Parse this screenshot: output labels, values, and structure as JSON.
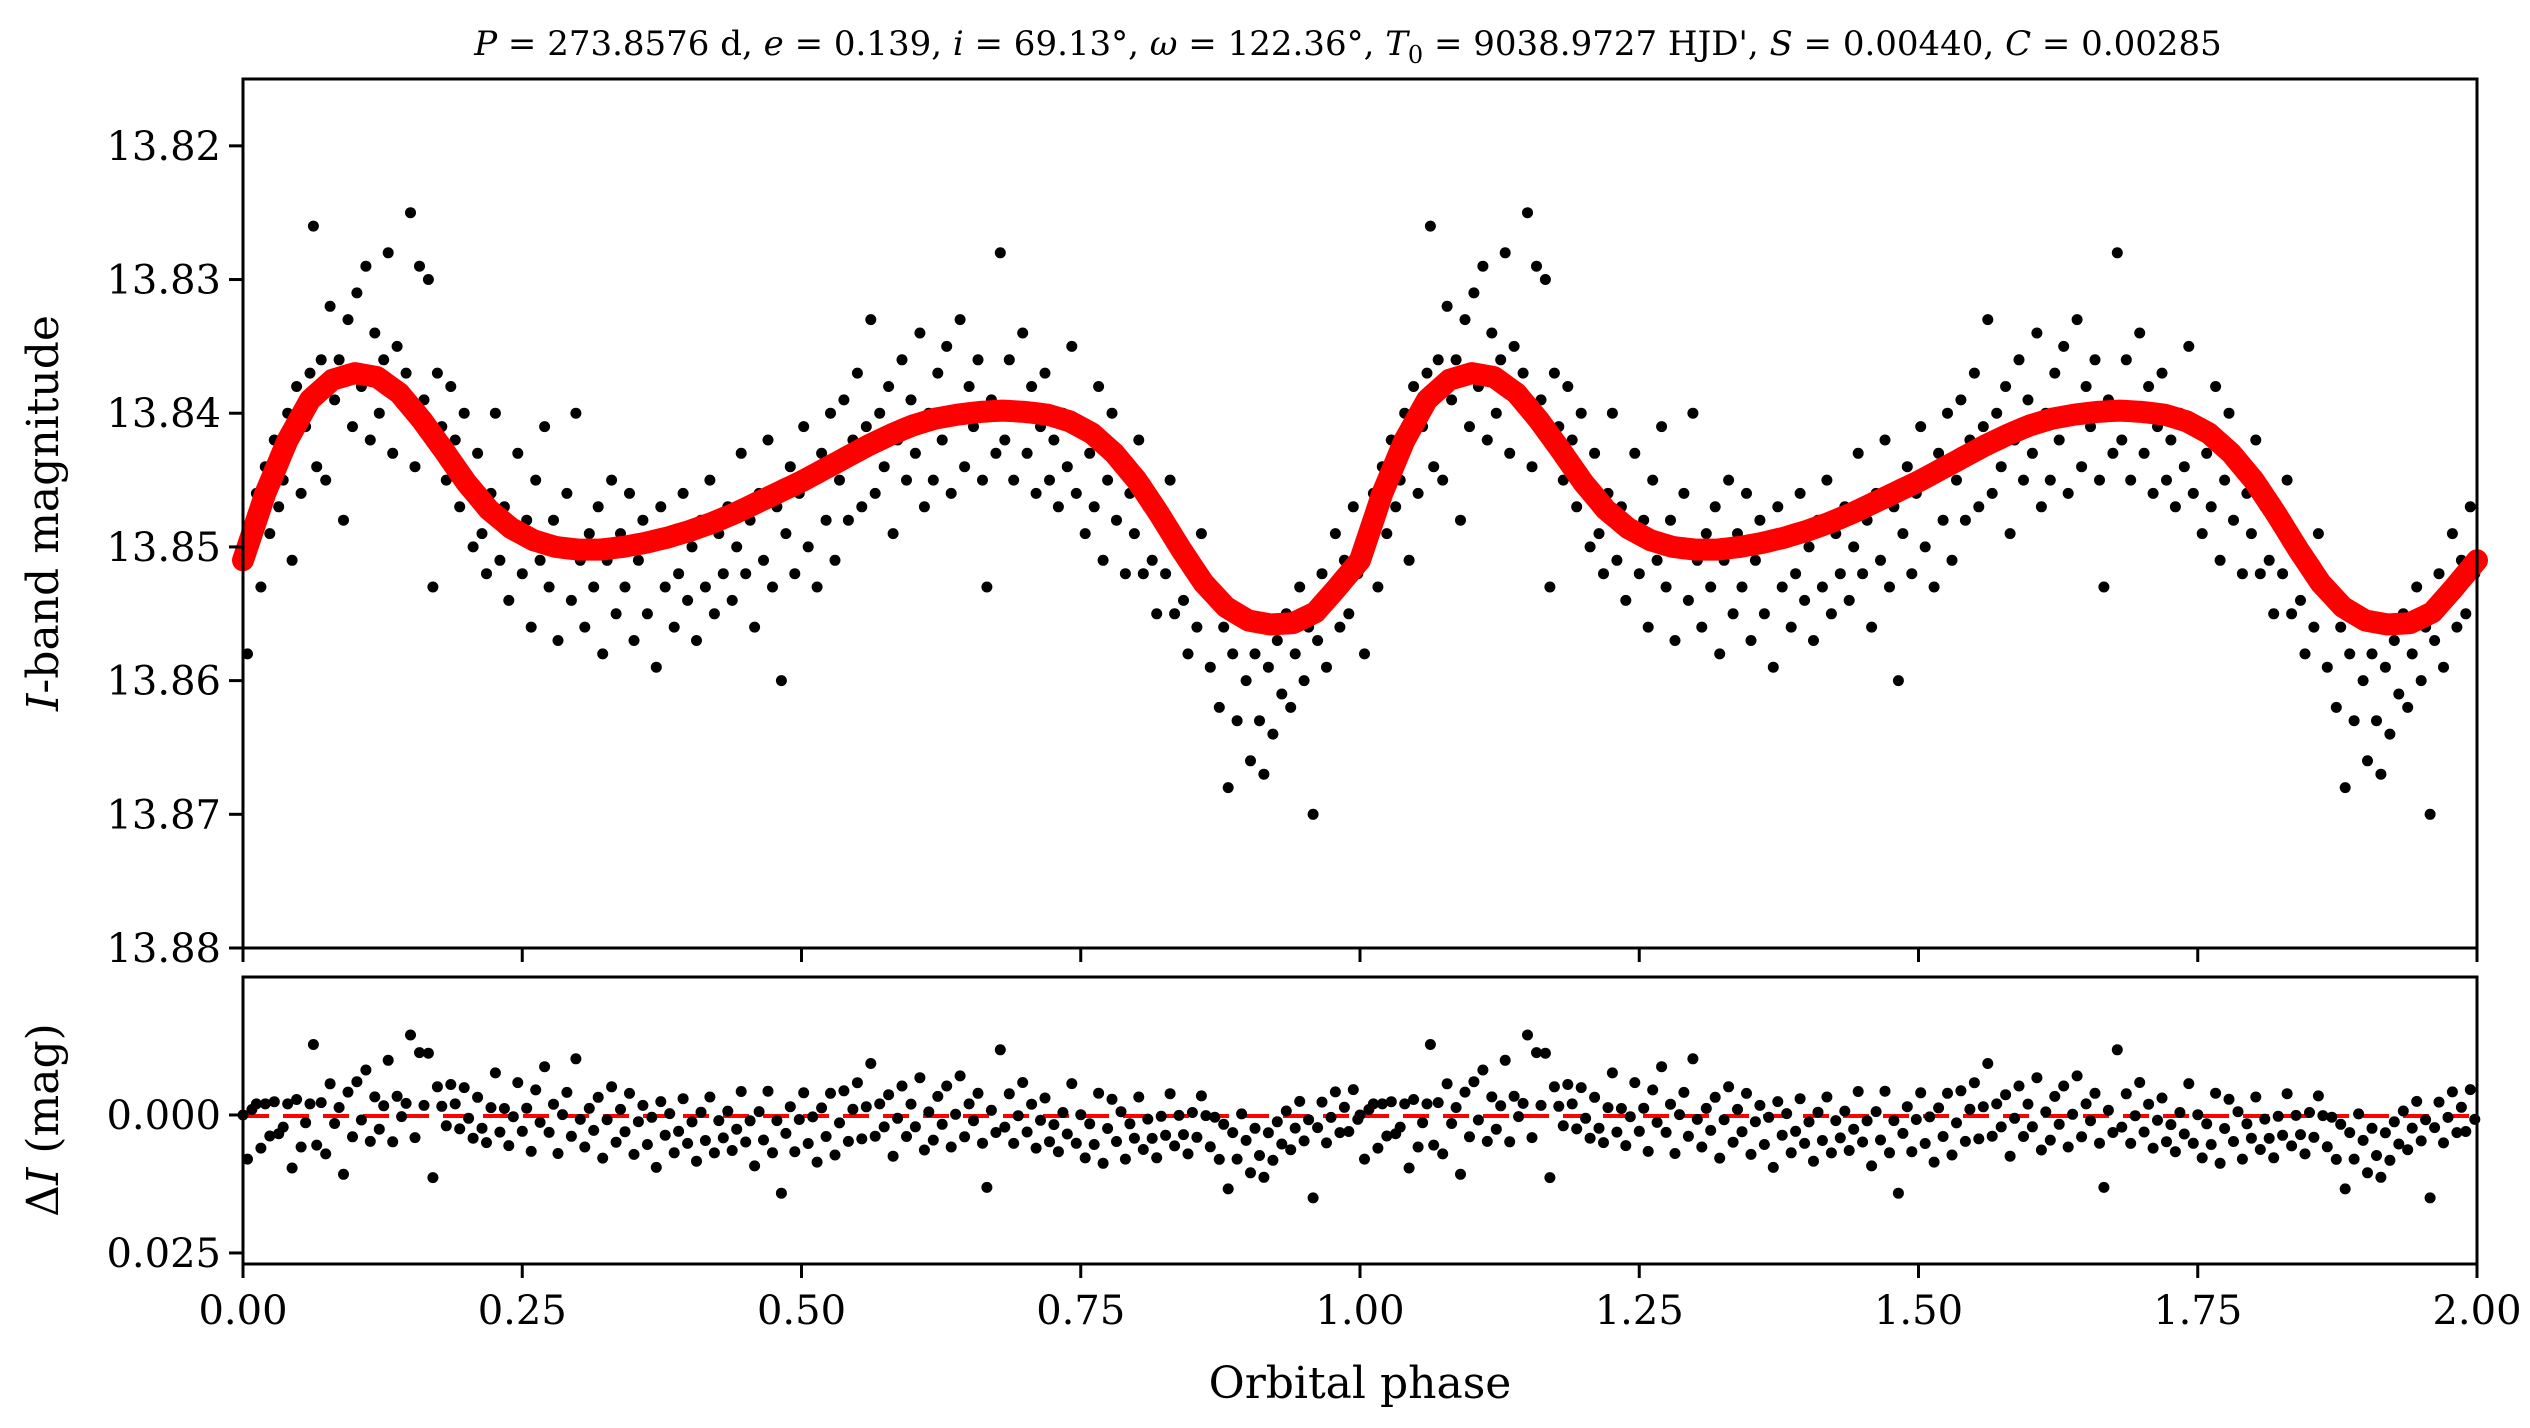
{
  "figure": {
    "title": "P = 273.8576 d, e = 0.139, i = 69.13°, ω = 122.36°, T₀ = 9038.9727 HJD', S = 0.00440, C = 0.00285",
    "title_parts": {
      "P_sym": "P",
      "P_val": " = 273.8576 d, ",
      "e_sym": "e",
      "e_val": " = 0.139, ",
      "i_sym": "i",
      "i_val": " = 69.13°, ",
      "w_sym": "ω",
      "w_val": " = 122.36°, ",
      "T_sym": "T",
      "T_sub": "0",
      "T_val": " = 9038.9727 HJD', ",
      "S_sym": "S",
      "S_val": " = 0.00440, ",
      "C_sym": "C",
      "C_val": " = 0.00285"
    },
    "xlabel": "Orbital phase",
    "top_ylabel_italic": "I",
    "top_ylabel_rest": "-band magnitude",
    "bottom_ylabel_delta": "Δ",
    "bottom_ylabel_italic": "I",
    "bottom_ylabel_rest": " (mag)",
    "colors": {
      "points": "#000000",
      "model": "#ff0000",
      "zero_line": "#ff0000"
    }
  },
  "chart_data": [
    {
      "type": "scatter",
      "panel": "light curve",
      "xlim": [
        0.0,
        2.0
      ],
      "ylim": [
        13.88,
        13.815
      ],
      "y_inverted": true,
      "xticks": [
        0.0,
        0.25,
        0.5,
        0.75,
        1.0,
        1.25,
        1.5,
        1.75,
        2.0
      ],
      "yticks": [
        "13.82",
        "13.83",
        "13.84",
        "13.85",
        "13.86",
        "13.87",
        "13.88"
      ],
      "grid": false,
      "point_color": "#000000",
      "observations_phase_0_to_1": [
        [
          0.0,
          13.851
        ],
        [
          0.004,
          13.858
        ],
        [
          0.008,
          13.848
        ],
        [
          0.012,
          13.846
        ],
        [
          0.016,
          13.853
        ],
        [
          0.02,
          13.844
        ],
        [
          0.024,
          13.849
        ],
        [
          0.028,
          13.842
        ],
        [
          0.032,
          13.847
        ],
        [
          0.036,
          13.845
        ],
        [
          0.04,
          13.84
        ],
        [
          0.044,
          13.851
        ],
        [
          0.048,
          13.838
        ],
        [
          0.052,
          13.846
        ],
        [
          0.056,
          13.841
        ],
        [
          0.06,
          13.837
        ],
        [
          0.063,
          13.826
        ],
        [
          0.066,
          13.844
        ],
        [
          0.07,
          13.836
        ],
        [
          0.074,
          13.845
        ],
        [
          0.078,
          13.832
        ],
        [
          0.082,
          13.839
        ],
        [
          0.086,
          13.836
        ],
        [
          0.09,
          13.848
        ],
        [
          0.094,
          13.833
        ],
        [
          0.098,
          13.841
        ],
        [
          0.102,
          13.831
        ],
        [
          0.106,
          13.838
        ],
        [
          0.11,
          13.829
        ],
        [
          0.114,
          13.842
        ],
        [
          0.118,
          13.834
        ],
        [
          0.122,
          13.84
        ],
        [
          0.126,
          13.836
        ],
        [
          0.13,
          13.828
        ],
        [
          0.134,
          13.843
        ],
        [
          0.138,
          13.835
        ],
        [
          0.142,
          13.839
        ],
        [
          0.146,
          13.837
        ],
        [
          0.15,
          13.825
        ],
        [
          0.154,
          13.844
        ],
        [
          0.158,
          13.829
        ],
        [
          0.162,
          13.839
        ],
        [
          0.166,
          13.83
        ],
        [
          0.17,
          13.853
        ],
        [
          0.174,
          13.837
        ],
        [
          0.178,
          13.841
        ],
        [
          0.182,
          13.845
        ],
        [
          0.186,
          13.838
        ],
        [
          0.19,
          13.842
        ],
        [
          0.194,
          13.847
        ],
        [
          0.198,
          13.84
        ],
        [
          0.202,
          13.846
        ],
        [
          0.206,
          13.85
        ],
        [
          0.21,
          13.843
        ],
        [
          0.214,
          13.849
        ],
        [
          0.218,
          13.852
        ],
        [
          0.222,
          13.846
        ],
        [
          0.226,
          13.84
        ],
        [
          0.23,
          13.851
        ],
        [
          0.234,
          13.847
        ],
        [
          0.238,
          13.854
        ],
        [
          0.242,
          13.849
        ],
        [
          0.246,
          13.843
        ],
        [
          0.25,
          13.852
        ],
        [
          0.254,
          13.848
        ],
        [
          0.258,
          13.856
        ],
        [
          0.262,
          13.845
        ],
        [
          0.266,
          13.851
        ],
        [
          0.27,
          13.841
        ],
        [
          0.274,
          13.853
        ],
        [
          0.278,
          13.848
        ],
        [
          0.282,
          13.857
        ],
        [
          0.286,
          13.85
        ],
        [
          0.29,
          13.846
        ],
        [
          0.294,
          13.854
        ],
        [
          0.298,
          13.84
        ],
        [
          0.302,
          13.851
        ],
        [
          0.306,
          13.856
        ],
        [
          0.31,
          13.849
        ],
        [
          0.314,
          13.853
        ],
        [
          0.318,
          13.847
        ],
        [
          0.322,
          13.858
        ],
        [
          0.326,
          13.851
        ],
        [
          0.33,
          13.845
        ],
        [
          0.334,
          13.855
        ],
        [
          0.338,
          13.849
        ],
        [
          0.342,
          13.853
        ],
        [
          0.346,
          13.846
        ],
        [
          0.35,
          13.857
        ],
        [
          0.354,
          13.851
        ],
        [
          0.358,
          13.848
        ],
        [
          0.362,
          13.855
        ],
        [
          0.366,
          13.85
        ],
        [
          0.37,
          13.859
        ],
        [
          0.374,
          13.847
        ],
        [
          0.378,
          13.853
        ],
        [
          0.382,
          13.849
        ],
        [
          0.386,
          13.856
        ],
        [
          0.39,
          13.852
        ],
        [
          0.394,
          13.846
        ],
        [
          0.398,
          13.854
        ],
        [
          0.402,
          13.85
        ],
        [
          0.406,
          13.857
        ],
        [
          0.41,
          13.848
        ],
        [
          0.414,
          13.853
        ],
        [
          0.418,
          13.845
        ],
        [
          0.422,
          13.855
        ],
        [
          0.426,
          13.849
        ],
        [
          0.43,
          13.852
        ],
        [
          0.434,
          13.847
        ],
        [
          0.438,
          13.854
        ],
        [
          0.442,
          13.85
        ],
        [
          0.446,
          13.843
        ],
        [
          0.45,
          13.852
        ],
        [
          0.454,
          13.848
        ],
        [
          0.458,
          13.856
        ],
        [
          0.462,
          13.846
        ],
        [
          0.466,
          13.851
        ],
        [
          0.47,
          13.842
        ],
        [
          0.474,
          13.853
        ],
        [
          0.478,
          13.847
        ],
        [
          0.482,
          13.86
        ],
        [
          0.486,
          13.849
        ],
        [
          0.49,
          13.844
        ],
        [
          0.494,
          13.852
        ],
        [
          0.498,
          13.846
        ],
        [
          0.502,
          13.841
        ],
        [
          0.506,
          13.85
        ],
        [
          0.51,
          13.845
        ],
        [
          0.514,
          13.853
        ],
        [
          0.518,
          13.843
        ],
        [
          0.522,
          13.848
        ],
        [
          0.526,
          13.84
        ],
        [
          0.53,
          13.851
        ],
        [
          0.534,
          13.845
        ],
        [
          0.538,
          13.839
        ],
        [
          0.542,
          13.848
        ],
        [
          0.546,
          13.842
        ],
        [
          0.55,
          13.837
        ],
        [
          0.554,
          13.847
        ],
        [
          0.558,
          13.841
        ],
        [
          0.562,
          13.833
        ],
        [
          0.566,
          13.846
        ],
        [
          0.57,
          13.84
        ],
        [
          0.574,
          13.844
        ],
        [
          0.578,
          13.838
        ],
        [
          0.582,
          13.849
        ],
        [
          0.586,
          13.842
        ],
        [
          0.59,
          13.836
        ],
        [
          0.594,
          13.845
        ],
        [
          0.598,
          13.839
        ],
        [
          0.602,
          13.843
        ],
        [
          0.606,
          13.834
        ],
        [
          0.61,
          13.847
        ],
        [
          0.614,
          13.84
        ],
        [
          0.618,
          13.845
        ],
        [
          0.622,
          13.837
        ],
        [
          0.626,
          13.842
        ],
        [
          0.63,
          13.835
        ],
        [
          0.634,
          13.846
        ],
        [
          0.638,
          13.84
        ],
        [
          0.642,
          13.833
        ],
        [
          0.646,
          13.844
        ],
        [
          0.65,
          13.838
        ],
        [
          0.654,
          13.841
        ],
        [
          0.658,
          13.836
        ],
        [
          0.662,
          13.845
        ],
        [
          0.666,
          13.853
        ],
        [
          0.67,
          13.839
        ],
        [
          0.674,
          13.843
        ],
        [
          0.678,
          13.828
        ],
        [
          0.682,
          13.842
        ],
        [
          0.686,
          13.836
        ],
        [
          0.69,
          13.845
        ],
        [
          0.694,
          13.84
        ],
        [
          0.698,
          13.834
        ],
        [
          0.702,
          13.843
        ],
        [
          0.706,
          13.838
        ],
        [
          0.71,
          13.846
        ],
        [
          0.714,
          13.841
        ],
        [
          0.718,
          13.837
        ],
        [
          0.722,
          13.845
        ],
        [
          0.726,
          13.842
        ],
        [
          0.73,
          13.847
        ],
        [
          0.734,
          13.84
        ],
        [
          0.738,
          13.844
        ],
        [
          0.742,
          13.835
        ],
        [
          0.746,
          13.846
        ],
        [
          0.75,
          13.841
        ],
        [
          0.754,
          13.849
        ],
        [
          0.758,
          13.843
        ],
        [
          0.762,
          13.847
        ],
        [
          0.766,
          13.838
        ],
        [
          0.77,
          13.851
        ],
        [
          0.774,
          13.845
        ],
        [
          0.778,
          13.84
        ],
        [
          0.782,
          13.848
        ],
        [
          0.786,
          13.843
        ],
        [
          0.79,
          13.852
        ],
        [
          0.794,
          13.846
        ],
        [
          0.798,
          13.849
        ],
        [
          0.802,
          13.842
        ],
        [
          0.806,
          13.852
        ],
        [
          0.81,
          13.847
        ],
        [
          0.814,
          13.851
        ],
        [
          0.818,
          13.855
        ],
        [
          0.822,
          13.848
        ],
        [
          0.826,
          13.852
        ],
        [
          0.83,
          13.845
        ],
        [
          0.834,
          13.855
        ],
        [
          0.838,
          13.85
        ],
        [
          0.842,
          13.854
        ],
        [
          0.846,
          13.858
        ],
        [
          0.85,
          13.851
        ],
        [
          0.854,
          13.856
        ],
        [
          0.858,
          13.849
        ],
        [
          0.862,
          13.853
        ],
        [
          0.866,
          13.859
        ],
        [
          0.87,
          13.854
        ],
        [
          0.874,
          13.862
        ],
        [
          0.878,
          13.856
        ],
        [
          0.882,
          13.868
        ],
        [
          0.886,
          13.858
        ],
        [
          0.89,
          13.863
        ],
        [
          0.894,
          13.855
        ],
        [
          0.898,
          13.86
        ],
        [
          0.902,
          13.866
        ],
        [
          0.906,
          13.858
        ],
        [
          0.91,
          13.863
        ],
        [
          0.914,
          13.867
        ],
        [
          0.918,
          13.859
        ],
        [
          0.922,
          13.864
        ],
        [
          0.926,
          13.857
        ],
        [
          0.93,
          13.861
        ],
        [
          0.934,
          13.855
        ],
        [
          0.938,
          13.862
        ],
        [
          0.942,
          13.858
        ],
        [
          0.946,
          13.853
        ],
        [
          0.95,
          13.86
        ],
        [
          0.954,
          13.856
        ],
        [
          0.958,
          13.87
        ],
        [
          0.962,
          13.857
        ],
        [
          0.966,
          13.852
        ],
        [
          0.97,
          13.859
        ],
        [
          0.974,
          13.854
        ],
        [
          0.978,
          13.849
        ],
        [
          0.982,
          13.856
        ],
        [
          0.986,
          13.851
        ],
        [
          0.99,
          13.855
        ],
        [
          0.994,
          13.847
        ],
        [
          0.998,
          13.852
        ]
      ],
      "model_curve_label": "",
      "model_phase_0_to_1": [
        [
          0.0,
          13.851
        ],
        [
          0.02,
          13.846
        ],
        [
          0.04,
          13.842
        ],
        [
          0.06,
          13.839
        ],
        [
          0.08,
          13.8375
        ],
        [
          0.1,
          13.837
        ],
        [
          0.12,
          13.8373
        ],
        [
          0.14,
          13.8385
        ],
        [
          0.16,
          13.8405
        ],
        [
          0.18,
          13.8428
        ],
        [
          0.2,
          13.8452
        ],
        [
          0.22,
          13.8472
        ],
        [
          0.24,
          13.8486
        ],
        [
          0.26,
          13.8495
        ],
        [
          0.28,
          13.85
        ],
        [
          0.3,
          13.8502
        ],
        [
          0.32,
          13.8502
        ],
        [
          0.34,
          13.85
        ],
        [
          0.36,
          13.8497
        ],
        [
          0.38,
          13.8493
        ],
        [
          0.4,
          13.8488
        ],
        [
          0.42,
          13.8482
        ],
        [
          0.44,
          13.8475
        ],
        [
          0.46,
          13.8467
        ],
        [
          0.48,
          13.8459
        ],
        [
          0.5,
          13.8451
        ],
        [
          0.52,
          13.8442
        ],
        [
          0.54,
          13.8433
        ],
        [
          0.56,
          13.8424
        ],
        [
          0.58,
          13.8416
        ],
        [
          0.6,
          13.8409
        ],
        [
          0.62,
          13.8404
        ],
        [
          0.64,
          13.8401
        ],
        [
          0.66,
          13.8399
        ],
        [
          0.68,
          13.8398
        ],
        [
          0.7,
          13.8399
        ],
        [
          0.72,
          13.8401
        ],
        [
          0.74,
          13.8406
        ],
        [
          0.76,
          13.8415
        ],
        [
          0.78,
          13.843
        ],
        [
          0.8,
          13.845
        ],
        [
          0.82,
          13.8475
        ],
        [
          0.84,
          13.8502
        ],
        [
          0.86,
          13.8527
        ],
        [
          0.88,
          13.8545
        ],
        [
          0.9,
          13.8555
        ],
        [
          0.92,
          13.8558
        ],
        [
          0.94,
          13.8557
        ],
        [
          0.96,
          13.8549
        ],
        [
          0.98,
          13.853
        ],
        [
          1.0,
          13.851
        ]
      ]
    },
    {
      "type": "scatter",
      "panel": "residuals",
      "xlim": [
        0.0,
        2.0
      ],
      "ylim": [
        0.027,
        -0.025
      ],
      "y_inverted": true,
      "xticks": [
        "0.00",
        "0.25",
        "0.50",
        "0.75",
        "1.00",
        "1.25",
        "1.50",
        "1.75",
        "2.00"
      ],
      "yticks": [
        "0.000",
        "0.025"
      ],
      "reference_line": 0.0,
      "reference_line_style": "dashed",
      "grid": false,
      "residual_amplitude_mag": 0.008,
      "residual_max_abs_mag": 0.017
    }
  ]
}
